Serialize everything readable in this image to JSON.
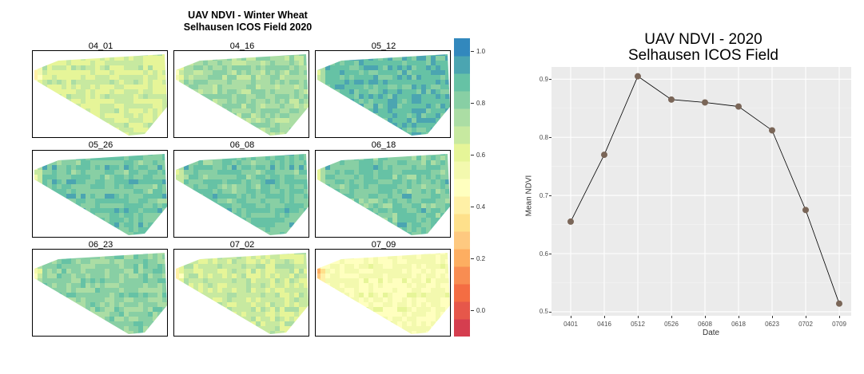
{
  "left_figure": {
    "title_line1": "UAV NDVI - Winter Wheat",
    "title_line2": "Selhausen ICOS Field 2020",
    "panels": [
      {
        "label": "04_01",
        "mean_ndvi": 0.655
      },
      {
        "label": "04_16",
        "mean_ndvi": 0.77
      },
      {
        "label": "05_12",
        "mean_ndvi": 0.905
      },
      {
        "label": "05_26",
        "mean_ndvi": 0.865
      },
      {
        "label": "06_08",
        "mean_ndvi": 0.86
      },
      {
        "label": "06_18",
        "mean_ndvi": 0.853
      },
      {
        "label": "06_23",
        "mean_ndvi": 0.812
      },
      {
        "label": "07_02",
        "mean_ndvi": 0.675
      },
      {
        "label": "07_09",
        "mean_ndvi": 0.514
      }
    ],
    "colorbar": {
      "ticks": [
        "1.0",
        "0.8",
        "0.6",
        "0.4",
        "0.2",
        "0.0"
      ],
      "min": -0.1,
      "max": 1.05,
      "palette": "Spectral",
      "colors": [
        "#d53e4f",
        "#e6574a",
        "#f46d43",
        "#f88d52",
        "#fdae61",
        "#fec980",
        "#fee08b",
        "#fff0a6",
        "#ffffbf",
        "#f3f9ae",
        "#e6f598",
        "#c7e9a0",
        "#abdda4",
        "#88cfa4",
        "#66c2a5",
        "#4ba5b1",
        "#3288bd"
      ]
    }
  },
  "chart_data": {
    "type": "line",
    "title": "UAV NDVI - 2020",
    "subtitle": "Selhausen ICOS Field",
    "xlabel": "Date",
    "ylabel": "Mean NDVI",
    "categories": [
      "0401",
      "0416",
      "0512",
      "0526",
      "0608",
      "0618",
      "0623",
      "0702",
      "0709"
    ],
    "values": [
      0.655,
      0.77,
      0.905,
      0.865,
      0.86,
      0.853,
      0.812,
      0.675,
      0.514
    ],
    "yticks": [
      "0.5",
      "0.6",
      "0.7",
      "0.8",
      "0.9"
    ],
    "ylim": [
      0.5,
      0.92
    ],
    "grid": true,
    "background": "#ebebeb",
    "point_color": "#7a6658",
    "line_color": "#000000"
  }
}
